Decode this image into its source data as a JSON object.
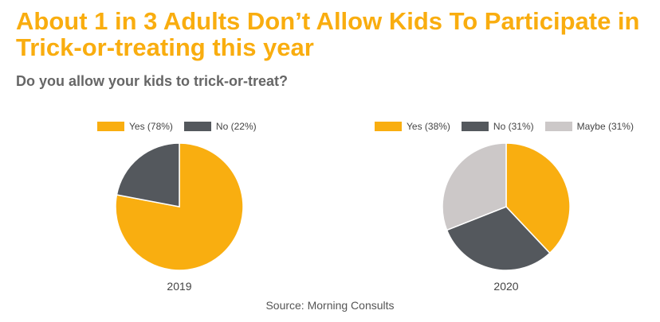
{
  "header": {
    "title_line1": "About 1 in 3 Adults Don’t Allow Kids To Participate in",
    "title_line2": "Trick-or-treating this year",
    "subtitle": "Do you allow your kids to trick-or-treat?"
  },
  "source": "Source: Morning Consults",
  "chart_data": [
    {
      "type": "pie",
      "xlabel": "2019",
      "categories": [
        "Yes (78%)",
        "No (22%)"
      ],
      "values": [
        78,
        22
      ],
      "colors": [
        "#f9ae10",
        "#54585d"
      ],
      "legend": "top"
    },
    {
      "type": "pie",
      "xlabel": "2020",
      "categories": [
        "Yes (38%)",
        "No (31%)",
        "Maybe (31%)"
      ],
      "values": [
        38,
        31,
        31
      ],
      "colors": [
        "#f9ae10",
        "#54585d",
        "#ccc8c8"
      ],
      "legend": "top"
    }
  ]
}
